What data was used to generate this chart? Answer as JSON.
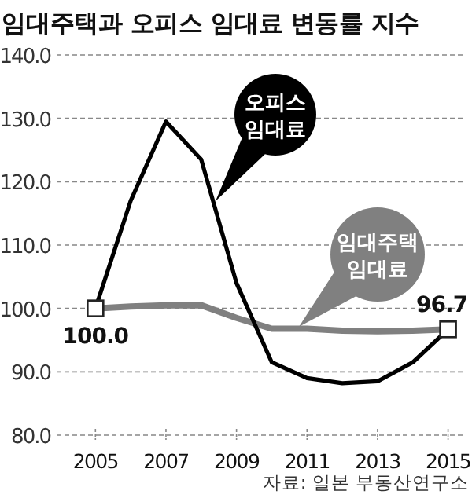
{
  "chart_data": {
    "type": "line",
    "title": "임대주택과 오피스 임대료 변동률 지수",
    "x": [
      2005,
      2006,
      2007,
      2008,
      2009,
      2010,
      2011,
      2012,
      2013,
      2014,
      2015
    ],
    "series": [
      {
        "name": "오피스 임대료",
        "color": "#000000",
        "values": [
          100.0,
          117,
          129.5,
          123.5,
          104,
          91.5,
          89,
          88.2,
          88.5,
          91.5,
          96.7
        ]
      },
      {
        "name": "임대주택 임대료",
        "color": "#808080",
        "values": [
          100.0,
          100.3,
          100.5,
          100.5,
          98.5,
          96.8,
          96.8,
          96.5,
          96.4,
          96.5,
          96.7
        ]
      }
    ],
    "xlim": [
      2003.9,
      2015.5
    ],
    "xticks": [
      2005,
      2007,
      2009,
      2011,
      2013,
      2015
    ],
    "ylim": [
      80,
      140
    ],
    "yticks": [
      {
        "value": 80,
        "label": "80.0"
      },
      {
        "value": 90,
        "label": "90.0"
      },
      {
        "value": 100,
        "label": "100.0"
      },
      {
        "value": 110,
        "label": "110.0"
      },
      {
        "value": 120,
        "label": "120.0"
      },
      {
        "value": 130,
        "label": "130.0"
      },
      {
        "value": 140,
        "label": "140.0"
      }
    ],
    "grid": "y",
    "line_style": "solid",
    "annotations": [
      {
        "text": "100.0",
        "x": 2005,
        "y": 100.0
      },
      {
        "text": "96.7",
        "x": 2015,
        "y": 96.7
      },
      "자료: 일본 부동산연구소"
    ]
  }
}
